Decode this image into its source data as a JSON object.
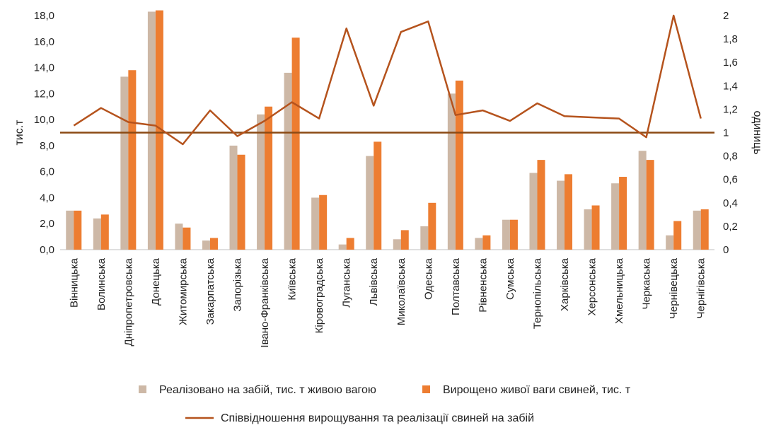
{
  "chart_data": {
    "type": "bar",
    "title": "",
    "ylabel": "тис.т",
    "y2label": "одиниць",
    "ylim": [
      0,
      18
    ],
    "y2lim": [
      0,
      2
    ],
    "yticks": [
      "0,0",
      "2,0",
      "4,0",
      "6,0",
      "8,0",
      "10,0",
      "12,0",
      "14,0",
      "16,0",
      "18,0"
    ],
    "y2ticks": [
      "0",
      "0,2",
      "0,4",
      "0,6",
      "0,8",
      "1",
      "1,2",
      "1,4",
      "1,6",
      "1,8",
      "2"
    ],
    "categories": [
      "Вінницька",
      "Волинська",
      "Дніпропетровська",
      "Донецька",
      "Житомирська",
      "Закарпатська",
      "Запорізька",
      "Івано-Франківська",
      "Київська",
      "Кіровоградська",
      "Луганська",
      "Львівська",
      "Миколаївська",
      "Одеська",
      "Полтавська",
      "Рівненська",
      "Сумська",
      "Тернопільська",
      "Харківська",
      "Херсонська",
      "Хмельницька",
      "Черкаська",
      "Чернівецька",
      "Чернігівська"
    ],
    "series": [
      {
        "name": "Реалізовано на забій, тис. т живою вагою",
        "kind": "bar",
        "color": "#cdb8a6",
        "values": [
          3.0,
          2.4,
          13.3,
          18.3,
          2.0,
          0.7,
          8.0,
          10.4,
          13.6,
          4.0,
          0.4,
          7.2,
          0.8,
          1.8,
          12.0,
          0.9,
          2.3,
          5.9,
          5.3,
          3.1,
          5.1,
          7.6,
          1.1,
          3.0
        ]
      },
      {
        "name": "Вирощено живої ваги свиней, тис. т",
        "kind": "bar",
        "color": "#ed7d31",
        "values": [
          3.0,
          2.7,
          13.8,
          18.4,
          1.7,
          0.9,
          7.3,
          11.0,
          16.3,
          4.2,
          0.9,
          8.3,
          1.5,
          3.6,
          13.0,
          1.1,
          2.3,
          6.9,
          5.8,
          3.4,
          5.6,
          6.9,
          2.2,
          3.1
        ]
      },
      {
        "name": "Співвідношення вирощування та реалізації свиней на забій",
        "kind": "line",
        "axis": "right",
        "color": "#b5531d",
        "values": [
          1.06,
          1.21,
          1.09,
          1.06,
          0.9,
          1.19,
          0.97,
          1.1,
          1.26,
          1.12,
          1.89,
          1.23,
          1.86,
          1.95,
          1.15,
          1.19,
          1.1,
          1.25,
          1.14,
          1.13,
          1.12,
          0.96,
          2.0,
          1.12
        ]
      }
    ],
    "reference_line": {
      "axis": "right",
      "value": 1.0,
      "color": "#8b4a14"
    },
    "legend_position": "bottom",
    "grid": false
  }
}
